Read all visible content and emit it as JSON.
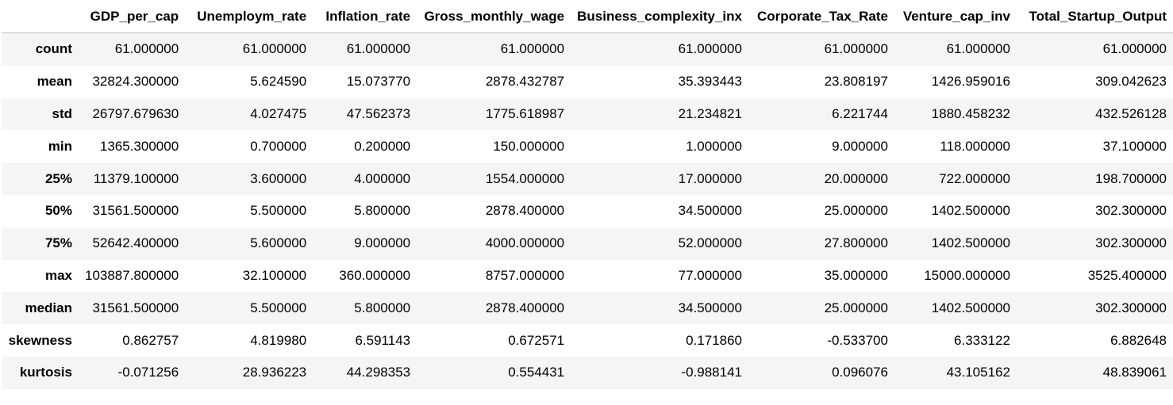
{
  "table": {
    "columns": [
      "",
      "GDP_per_cap",
      "Unemploym_rate",
      "Inflation_rate",
      "Gross_monthly_wage",
      "Business_complexity_inx",
      "Corporate_Tax_Rate",
      "Venture_cap_inv",
      "Total_Startup_Output"
    ],
    "rows": [
      {
        "label": "count",
        "values": [
          "61.000000",
          "61.000000",
          "61.000000",
          "61.000000",
          "61.000000",
          "61.000000",
          "61.000000",
          "61.000000"
        ]
      },
      {
        "label": "mean",
        "values": [
          "32824.300000",
          "5.624590",
          "15.073770",
          "2878.432787",
          "35.393443",
          "23.808197",
          "1426.959016",
          "309.042623"
        ]
      },
      {
        "label": "std",
        "values": [
          "26797.679630",
          "4.027475",
          "47.562373",
          "1775.618987",
          "21.234821",
          "6.221744",
          "1880.458232",
          "432.526128"
        ]
      },
      {
        "label": "min",
        "values": [
          "1365.300000",
          "0.700000",
          "0.200000",
          "150.000000",
          "1.000000",
          "9.000000",
          "118.000000",
          "37.100000"
        ]
      },
      {
        "label": "25%",
        "values": [
          "11379.100000",
          "3.600000",
          "4.000000",
          "1554.000000",
          "17.000000",
          "20.000000",
          "722.000000",
          "198.700000"
        ]
      },
      {
        "label": "50%",
        "values": [
          "31561.500000",
          "5.500000",
          "5.800000",
          "2878.400000",
          "34.500000",
          "25.000000",
          "1402.500000",
          "302.300000"
        ]
      },
      {
        "label": "75%",
        "values": [
          "52642.400000",
          "5.600000",
          "9.000000",
          "4000.000000",
          "52.000000",
          "27.800000",
          "1402.500000",
          "302.300000"
        ]
      },
      {
        "label": "max",
        "values": [
          "103887.800000",
          "32.100000",
          "360.000000",
          "8757.000000",
          "77.000000",
          "35.000000",
          "15000.000000",
          "3525.400000"
        ]
      },
      {
        "label": "median",
        "values": [
          "31561.500000",
          "5.500000",
          "5.800000",
          "2878.400000",
          "34.500000",
          "25.000000",
          "1402.500000",
          "302.300000"
        ]
      },
      {
        "label": "skewness",
        "values": [
          "0.862757",
          "4.819980",
          "6.591143",
          "0.672571",
          "0.171860",
          "-0.533700",
          "6.333122",
          "6.882648"
        ]
      },
      {
        "label": "kurtosis",
        "values": [
          "-0.071256",
          "28.936223",
          "44.298353",
          "0.554431",
          "-0.988141",
          "0.096076",
          "43.105162",
          "48.839061"
        ]
      }
    ]
  }
}
